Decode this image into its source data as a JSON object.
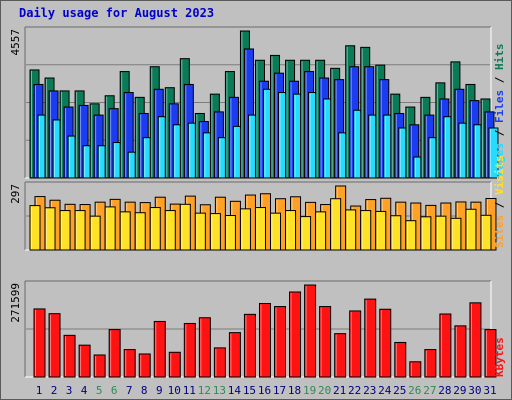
{
  "title": "Daily usage for August 2023",
  "colors": {
    "hits": "#0b7a57",
    "files": "#1a3df2",
    "pages": "#23dcff",
    "visits": "#ffa127",
    "sites": "#ffe225",
    "kbytes": "#ff1212",
    "weekend_label": "#2e8b57",
    "weekday_label": "#000080",
    "frame_bg": "#c0c0c0",
    "title": "#0000cc"
  },
  "chart_data": [
    {
      "type": "bar",
      "name": "hits-files-pages",
      "categories": [
        "1",
        "2",
        "3",
        "4",
        "5",
        "6",
        "7",
        "8",
        "9",
        "10",
        "11",
        "12",
        "13",
        "14",
        "15",
        "16",
        "17",
        "18",
        "19",
        "20",
        "21",
        "22",
        "23",
        "24",
        "25",
        "26",
        "27",
        "28",
        "29",
        "30",
        "31"
      ],
      "weekend_days": [
        "5",
        "6",
        "12",
        "13",
        "19",
        "20",
        "26",
        "27"
      ],
      "ymax_label": "4557",
      "ylim": [
        0,
        4557
      ],
      "series": [
        {
          "name": "Hits",
          "values": [
            3350,
            3100,
            2700,
            2700,
            2300,
            2550,
            3300,
            2500,
            3450,
            2800,
            3700,
            2000,
            2600,
            3300,
            4557,
            3650,
            3800,
            3650,
            3650,
            3650,
            3400,
            4100,
            4050,
            3500,
            2600,
            2200,
            2500,
            2950,
            3600,
            2900,
            2450
          ]
        },
        {
          "name": "Files",
          "values": [
            2900,
            2700,
            2200,
            2250,
            1950,
            2150,
            2650,
            2000,
            2750,
            2300,
            2900,
            1750,
            2050,
            2500,
            4000,
            3000,
            3250,
            3000,
            3300,
            3100,
            3050,
            3450,
            3450,
            3050,
            2000,
            1650,
            1950,
            2450,
            2750,
            2400,
            2050
          ]
        },
        {
          "name": "Pages",
          "values": [
            1950,
            1800,
            1300,
            1000,
            1000,
            1100,
            800,
            1250,
            1900,
            1650,
            1700,
            1400,
            1250,
            1600,
            1950,
            2750,
            2650,
            2600,
            2650,
            2450,
            1400,
            2100,
            1950,
            1950,
            1550,
            650,
            1250,
            1900,
            1700,
            1650,
            1550
          ]
        }
      ],
      "legend": [
        "Pages",
        "/",
        "Files",
        "/",
        "Hits"
      ]
    },
    {
      "type": "bar",
      "name": "sites-visits",
      "categories": [
        "1",
        "2",
        "3",
        "4",
        "5",
        "6",
        "7",
        "8",
        "9",
        "10",
        "11",
        "12",
        "13",
        "14",
        "15",
        "16",
        "17",
        "18",
        "19",
        "20",
        "21",
        "22",
        "23",
        "24",
        "25",
        "26",
        "27",
        "28",
        "29",
        "30",
        "31"
      ],
      "ymax_label": "297",
      "ylim": [
        0,
        297
      ],
      "series": [
        {
          "name": "Visits",
          "values": [
            248,
            231,
            212,
            211,
            222,
            235,
            222,
            220,
            245,
            213,
            250,
            210,
            245,
            226,
            255,
            261,
            238,
            247,
            221,
            211,
            297,
            204,
            234,
            240,
            222,
            218,
            207,
            218,
            223,
            222,
            239
          ]
        },
        {
          "name": "Sites",
          "values": [
            206,
            196,
            183,
            183,
            157,
            200,
            177,
            173,
            197,
            183,
            212,
            171,
            169,
            160,
            191,
            197,
            171,
            183,
            155,
            177,
            238,
            186,
            183,
            179,
            159,
            136,
            154,
            157,
            147,
            189,
            161
          ]
        }
      ],
      "legend": [
        "Sites",
        "/",
        "Visits"
      ]
    },
    {
      "type": "bar",
      "name": "kbytes",
      "categories": [
        "1",
        "2",
        "3",
        "4",
        "5",
        "6",
        "7",
        "8",
        "9",
        "10",
        "11",
        "12",
        "13",
        "14",
        "15",
        "16",
        "17",
        "18",
        "19",
        "20",
        "21",
        "22",
        "23",
        "24",
        "25",
        "26",
        "27",
        "28",
        "29",
        "30",
        "31"
      ],
      "ymax_label": "271599",
      "ylim": [
        0,
        271599
      ],
      "series": [
        {
          "name": "KBytes",
          "values": [
            201000,
            187000,
            123000,
            94000,
            65000,
            140000,
            81000,
            68000,
            164000,
            73000,
            158000,
            175000,
            86000,
            131000,
            185000,
            217000,
            208000,
            251000,
            271599,
            208000,
            128000,
            195000,
            230000,
            200000,
            102000,
            45000,
            81000,
            186000,
            151000,
            219000,
            140000
          ]
        }
      ],
      "legend": [
        "KBytes"
      ]
    }
  ]
}
